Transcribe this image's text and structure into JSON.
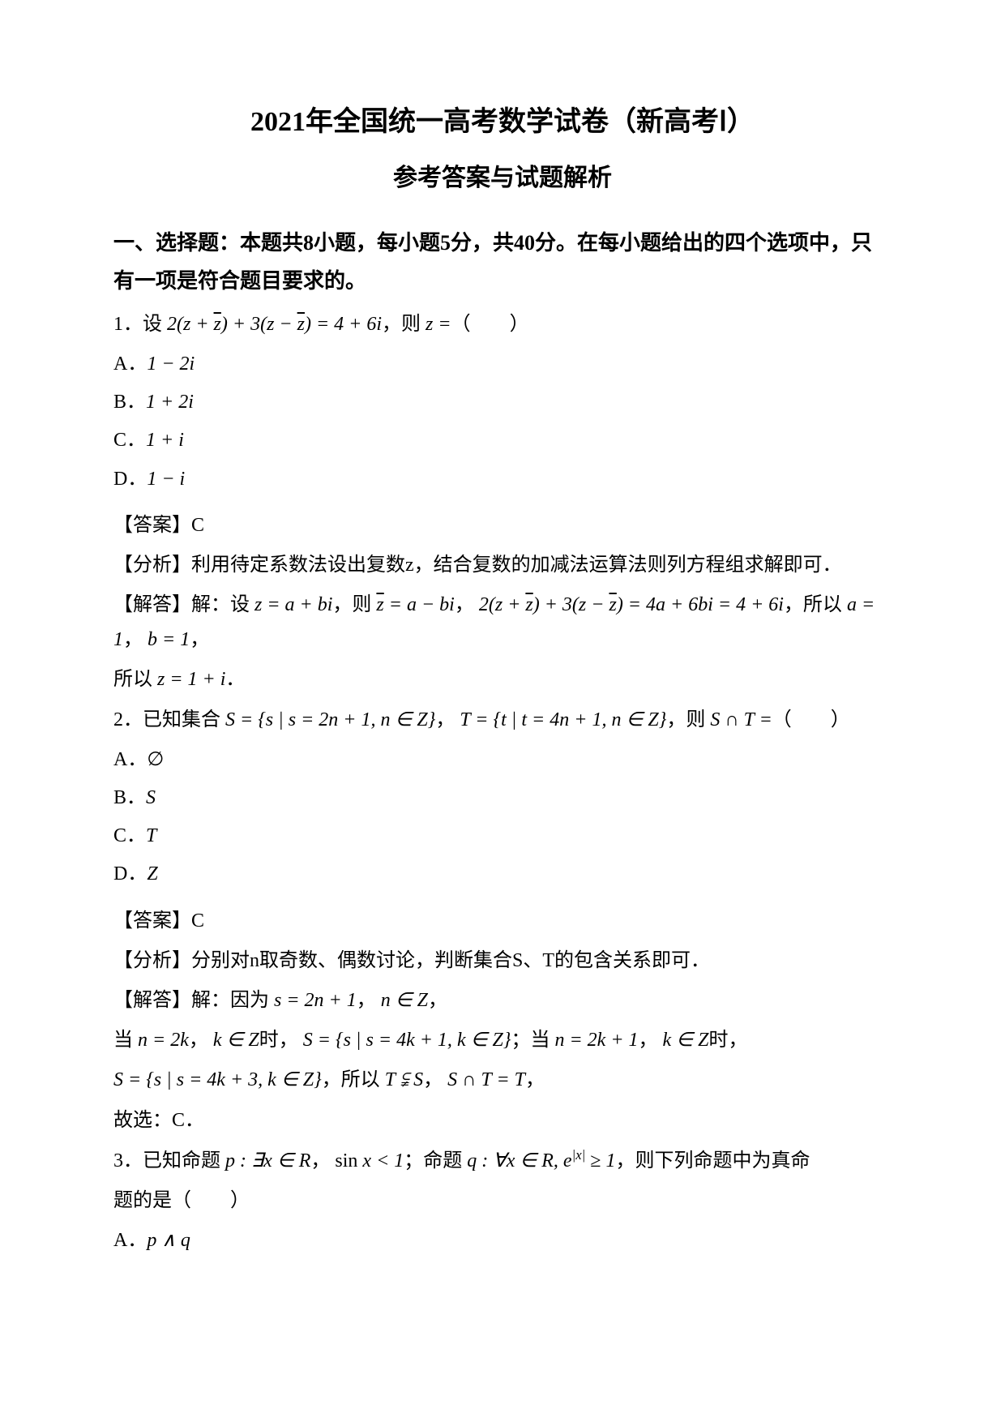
{
  "header": {
    "title": "2021年全国统一高考数学试卷（新高考Ⅰ）",
    "subtitle": "参考答案与试题解析"
  },
  "section": {
    "heading": "一、选择题：本题共8小题，每小题5分，共40分。在每小题给出的四个选项中，只有一项是符合题目要求的。",
    "instruction": ""
  },
  "q1": {
    "num": "1．",
    "stem_prefix": "设",
    "eq1": "2(z + z̄) + 3(z − z̄) = 4 + 6i",
    "stem_mid": "，则",
    "eq2": "z =",
    "stem_suffix": "（　　）",
    "optA_label": "A．",
    "optA": "1 − 2i",
    "optB_label": "B．",
    "optB": "1 + 2i",
    "optC_label": "C．",
    "optC": "1 + i",
    "optD_label": "D．",
    "optD": "1 − i",
    "answer_label": "【答案】C",
    "analysis_label": "【分析】",
    "analysis": "利用待定系数法设出复数z，结合复数的加减法运算法则列方程组求解即可．",
    "explain_label": "【解答】",
    "explain_pre": "解：设",
    "ex_eq1": "z = a + bi",
    "explain_m1": "，则",
    "ex_eq2": "z̄ = a − bi",
    "explain_m2": "，",
    "ex_eq3": "2(z + z̄) + 3(z − z̄) = 4a + 6bi = 4 + 6i",
    "explain_m3": "，所以",
    "ex_eq4": "a = 1",
    "explain_m4": "，",
    "ex_eq5": "b = 1",
    "explain_end": "，",
    "explain_line2_pre": "所以",
    "ex_eq6": "z = 1 + i",
    "explain_line2_end": "．"
  },
  "q2": {
    "num": "2．",
    "stem_prefix": "已知集合",
    "eqS": "S = {s | s = 2n + 1, n ∈ Z}",
    "stem_m1": "，",
    "eqT": "T = {t | t = 4n + 1, n ∈ Z}",
    "stem_m2": "，则",
    "eqInt": "S ∩ T =",
    "stem_suffix": "（　　）",
    "optA_label": "A．",
    "optA": "∅",
    "optB_label": "B．",
    "optB": "S",
    "optC_label": "C．",
    "optC": "T",
    "optD_label": "D．",
    "optD": "Z",
    "answer_label": "【答案】C",
    "analysis_label": "【分析】",
    "analysis": "分别对n取奇数、偶数讨论，判断集合S、T的包含关系即可．",
    "explain_label": "【解答】",
    "explain_pre": "解：因为",
    "ex_line1a": "s = 2n + 1",
    "ex_m1": "，",
    "ex_line1b": "n ∈ Z",
    "ex_m2": "，",
    "ex_line2_pre": "当",
    "ex_line2a": "n = 2k",
    "ex_line2_m1": "，",
    "ex_line2b": "k ∈ Z",
    "ex_line2_m2": "时，",
    "ex_line2c": "S = {s | s = 4k + 1, k ∈ Z}",
    "ex_line2_m3": "；当",
    "ex_line2d": "n = 2k + 1",
    "ex_line2_m4": "，",
    "ex_line2e": "k ∈ Z",
    "ex_line2_end": "时，",
    "ex_line3a": "S = {s | s = 4k + 3, k ∈ Z}",
    "ex_line3_m1": "，所以",
    "ex_line3b": "T ⫋ S",
    "ex_line3_m2": "，",
    "ex_line3c": "S ∩ T = T",
    "ex_line3_end": "，",
    "ex_line4": "故选：C．"
  },
  "q3": {
    "num": "3．",
    "stem_prefix": "已知命题",
    "eqP": "p : ∃x ∈ R",
    "stem_m1": "，",
    "eqP2": "sin x < 1",
    "stem_m2": "；命题",
    "eqQ": "q : ∀x ∈ R, e^{|x|} ≥ 1",
    "stem_m3": "，则下列命题中为真命",
    "line2": "题的是（　　）",
    "optA_label": "A．",
    "optA": "p ∧ q"
  }
}
